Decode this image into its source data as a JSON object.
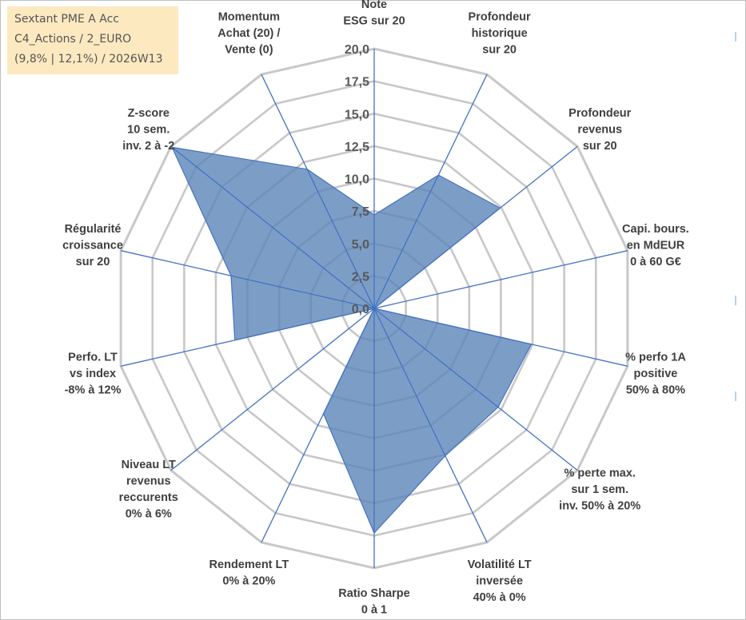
{
  "info_box": {
    "line1": "Sextant PME A Acc",
    "line2": "C4_Actions / 2_EURO",
    "line3": "(9,8% | 12,1%) / 2026W13"
  },
  "colors": {
    "fill": "#5b86b8",
    "fill_opacity": "0.8",
    "series_line": "#4472c4",
    "spoke": "#4472c4",
    "grid": "#c8c8c8",
    "info_bg": "#fde9c0"
  },
  "chart_data": {
    "type": "radar",
    "title": "",
    "rmin": 0,
    "rmax": 20,
    "tick_step": 2.5,
    "tick_labels": [
      "0,0",
      "2,5",
      "5,0",
      "7,5",
      "10,0",
      "12,5",
      "15,0",
      "17,5",
      "20,0"
    ],
    "axes": [
      {
        "label": [
          "Note",
          "ESG sur 20"
        ],
        "value": 7.2
      },
      {
        "label": [
          "Profondeur",
          "historique",
          "sur 20"
        ],
        "value": 11.4
      },
      {
        "label": [
          "Profondeur",
          "revenus",
          "sur 20"
        ],
        "value": 12.4
      },
      {
        "label": [
          "Capi. bours.",
          "en MdEUR",
          "0 à 60 G€"
        ],
        "value": 0
      },
      {
        "label": [
          "% perfo 1A",
          "positive",
          "50% à 80%"
        ],
        "value": 12.4
      },
      {
        "label": [
          "% perte max.",
          "sur 1 sem.",
          "inv. 50% à 20%"
        ],
        "value": 12.2
      },
      {
        "label": [
          "Volatilité LT",
          "inversée",
          "40% à 0%"
        ],
        "value": 12.6
      },
      {
        "label": [
          "Ratio Sharpe",
          "0 à 1"
        ],
        "value": 17.3
      },
      {
        "label": [
          "Rendement LT",
          "0% à 20%"
        ],
        "value": 9.0
      },
      {
        "label": [
          "Niveau LT",
          "revenus",
          "reccurents",
          "0% à 6%"
        ],
        "value": 0
      },
      {
        "label": [
          "Perfo. LT",
          "vs index",
          "-8% à 12%"
        ],
        "value": 11.0
      },
      {
        "label": [
          "Régularité",
          "croissance",
          "sur 20"
        ],
        "value": 11.3
      },
      {
        "label": [
          "Z-score",
          "10 sem.",
          "inv. 2 à -2"
        ],
        "value": 19.9
      },
      {
        "label": [
          "Momentum",
          "Achat (20) /",
          "Vente (0)"
        ],
        "value": 11.9
      }
    ]
  }
}
